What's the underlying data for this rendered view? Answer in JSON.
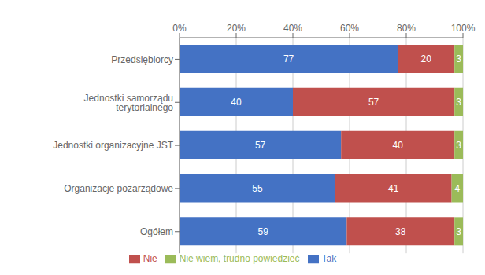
{
  "chart_data": {
    "type": "bar",
    "orientation": "horizontal",
    "stacked": true,
    "categories": [
      "Ogółem",
      "Organizacje pozarządowe",
      "Jednostki organizacyjne JST",
      "Jednostki samorządu terytorialnego",
      "Przedsiębiorcy"
    ],
    "series": [
      {
        "name": "Tak",
        "color": "#4472C4",
        "values": [
          59,
          55,
          57,
          40,
          77
        ]
      },
      {
        "name": "Nie",
        "color": "#C0504D",
        "values": [
          38,
          41,
          40,
          57,
          20
        ]
      },
      {
        "name": "Nie wiem, trudno powiedzieć",
        "color": "#9BBB59",
        "values": [
          3,
          4,
          3,
          3,
          3
        ]
      }
    ],
    "xlim": [
      0,
      100
    ],
    "xticks": [
      {
        "value": 0,
        "label": "0%"
      },
      {
        "value": 20,
        "label": "20%"
      },
      {
        "value": 40,
        "label": "40%"
      },
      {
        "value": 60,
        "label": "60%"
      },
      {
        "value": 80,
        "label": "80%"
      },
      {
        "value": 100,
        "label": "100%"
      }
    ],
    "grid": true,
    "data_labels": true,
    "legend": "bottom"
  }
}
